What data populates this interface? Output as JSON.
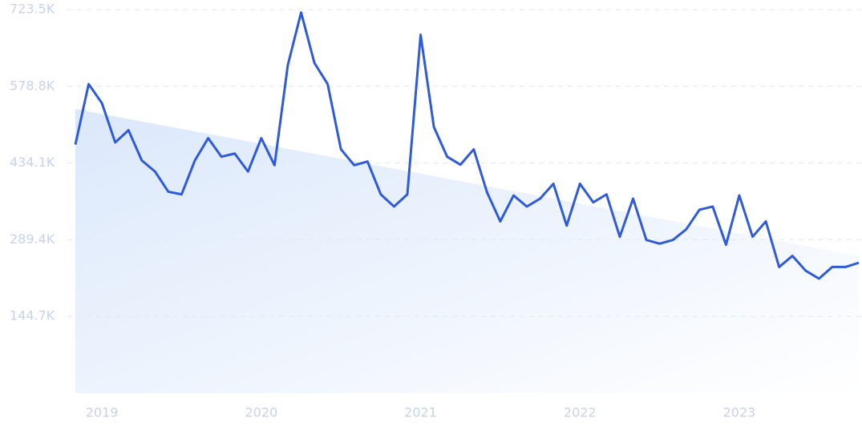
{
  "chart_data": {
    "type": "line",
    "categories": [
      null,
      null,
      "2019",
      null,
      null,
      null,
      null,
      null,
      null,
      null,
      null,
      null,
      null,
      null,
      "2020",
      null,
      null,
      null,
      null,
      null,
      null,
      null,
      null,
      null,
      null,
      null,
      "2021",
      null,
      null,
      null,
      null,
      null,
      null,
      null,
      null,
      null,
      null,
      null,
      "2022",
      null,
      null,
      null,
      null,
      null,
      null,
      null,
      null,
      null,
      null,
      null,
      "2023",
      null,
      null,
      null,
      null,
      null,
      null,
      null,
      null,
      null
    ],
    "series": [
      {
        "color": "#2f5bd9",
        "values": [
          469000,
          583000,
          547000,
          473000,
          496000,
          439000,
          418000,
          380000,
          375000,
          439000,
          481000,
          446000,
          452000,
          418000,
          481000,
          430000,
          619000,
          718000,
          623000,
          583000,
          460000,
          430000,
          437000,
          375000,
          352000,
          375000,
          676000,
          502000,
          446000,
          431000,
          460000,
          379000,
          324000,
          373000,
          352000,
          367000,
          395000,
          316000,
          395000,
          360000,
          375000,
          295000,
          367000,
          289000,
          282000,
          289000,
          309000,
          346000,
          352000,
          280000,
          373000,
          295000,
          324000,
          238000,
          259000,
          231000,
          216000,
          238000,
          238000,
          246000
        ]
      }
    ],
    "trend": {
      "values": [
        536000,
        259000
      ],
      "color": "#dbe8fb"
    },
    "ylim": [
      0,
      723500
    ],
    "yticks": [
      {
        "value": 144700,
        "label": "144.7K"
      },
      {
        "value": 289400,
        "label": "289.4K"
      },
      {
        "value": 434100,
        "label": "434.1K"
      },
      {
        "value": 578800,
        "label": "578.8K"
      },
      {
        "value": 723500,
        "label": "723.5K"
      }
    ],
    "grid": true
  }
}
